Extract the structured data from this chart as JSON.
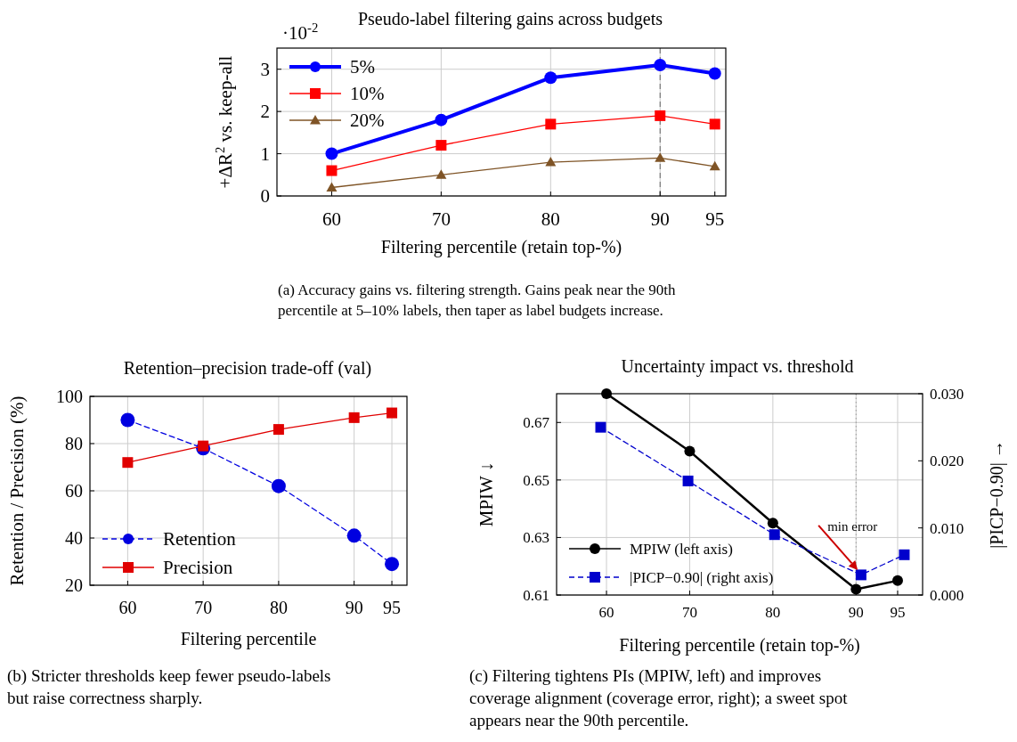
{
  "chart_data": [
    {
      "type": "line",
      "title": "Pseudo-label filtering gains across budgets",
      "xlabel": "Filtering percentile (retain top-%)",
      "ylabel": "+ΔR$^{2}$ vs. keep-all",
      "x": [
        60,
        70,
        80,
        90,
        95
      ],
      "xlim": [
        55,
        96
      ],
      "xticks": [
        60,
        70,
        80,
        90,
        95
      ],
      "ylim": [
        0,
        3.5
      ],
      "yticks": [
        0,
        1,
        2,
        3
      ],
      "series": [
        {
          "name": "5%",
          "color": "#0000ff",
          "marker": "circle",
          "values": [
            1.0,
            1.8,
            2.8,
            3.1,
            2.9
          ]
        },
        {
          "name": "10%",
          "color": "#ff0000",
          "marker": "square",
          "values": [
            0.6,
            1.2,
            1.7,
            1.9,
            1.7
          ]
        },
        {
          "name": "20%",
          "color": "#7f5426",
          "marker": "triangle",
          "values": [
            0.2,
            0.5,
            0.8,
            0.9,
            0.7
          ]
        }
      ],
      "ref_lines": [
        {
          "axis": "x",
          "value": 90,
          "color": "#666666",
          "line_style": "dashed"
        }
      ],
      "grid": true,
      "legend": "top left",
      "line_style": "solid",
      "annotations": [
        "·10$^{-2}$",
        "(a) Accuracy gains vs. filtering strength. Gains peak near the 90th percentile at 5–10% labels, then taper as label budgets increase."
      ]
    },
    {
      "type": "line",
      "title": "Retention–precision trade-off (val)",
      "xlabel": "Filtering percentile",
      "ylabel": "Retention / Precision (%)",
      "x": [
        60,
        70,
        80,
        90,
        95
      ],
      "xlim": [
        55,
        97
      ],
      "xticks": [
        60,
        70,
        80,
        90,
        95
      ],
      "ylim": [
        20,
        100
      ],
      "yticks": [
        20,
        40,
        60,
        80,
        100
      ],
      "series": [
        {
          "name": "Retention",
          "color": "#0000e0",
          "marker": "circle",
          "line_style": "dashed",
          "values": [
            90,
            78,
            62,
            41,
            29
          ]
        },
        {
          "name": "Precision",
          "color": "#e00000",
          "marker": "square",
          "line_style": "solid",
          "values": [
            72,
            79,
            86,
            91,
            93
          ]
        }
      ],
      "grid": true,
      "legend": "bottom left",
      "annotations": [
        "(b) Stricter thresholds keep fewer pseudo-labels but raise correctness sharply."
      ]
    },
    {
      "type": "line",
      "title": "Uncertainty impact vs. threshold",
      "xlabel": "Filtering percentile (retain top-%)",
      "ylabel": "MPIW ↓",
      "y2label": "|PICP−0.90| →",
      "xlim": [
        54,
        98
      ],
      "xticks": [
        60,
        70,
        80,
        90,
        95
      ],
      "ylim": [
        0.61,
        0.68
      ],
      "yticks": [
        0.61,
        0.63,
        0.65,
        0.67
      ],
      "y2lim": [
        0,
        0.03
      ],
      "y2ticks": [
        {
          "value": 0,
          "label": "0.000"
        },
        {
          "value": 0.01,
          "label": "0.010"
        },
        {
          "value": 0.02,
          "label": "0.020"
        },
        {
          "value": 0.03,
          "label": "0.030"
        }
      ],
      "series": [
        {
          "name": "MPIW (left axis)",
          "color": "#000000",
          "marker": "circle",
          "line_style": "solid",
          "x": [
            60,
            70,
            80,
            90,
            95
          ],
          "values": [
            0.68,
            0.66,
            0.635,
            0.612,
            0.615
          ]
        },
        {
          "name": "|PICP−0.90| (right axis)",
          "color": "#0000cc",
          "marker": "square",
          "line_style": "dashed",
          "axis": "y2",
          "x": [
            59.3,
            69.8,
            80.2,
            90.6,
            95.8
          ],
          "values": [
            0.025,
            0.017,
            0.009,
            0.003,
            0.006
          ]
        }
      ],
      "ref_lines": [
        {
          "axis": "x",
          "value": 90,
          "color": "#999999",
          "line_style": "dotted"
        }
      ],
      "grid": true,
      "legend": "bottom left",
      "annotations": [
        {
          "text": "min error",
          "x": 90.2,
          "y": 0.6187
        },
        "(c) Filtering tightens PIs (MPIW, left) and improves coverage alignment (coverage error, right); a sweet spot appears near the 90th percentile."
      ]
    }
  ]
}
